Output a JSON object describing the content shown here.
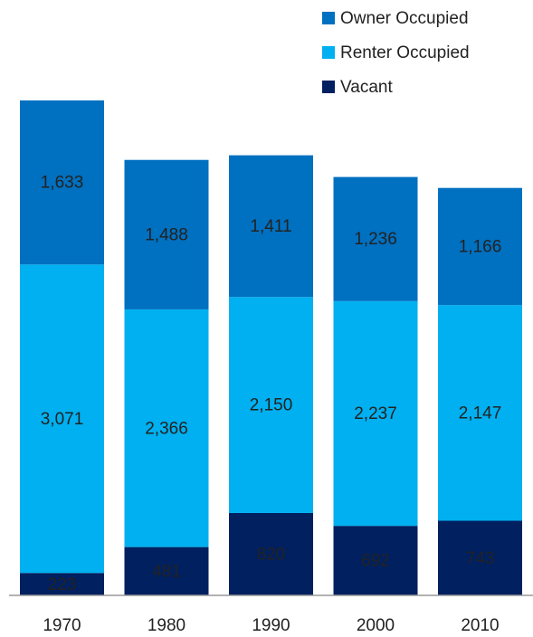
{
  "chart_data": {
    "type": "stacked_bar",
    "categories": [
      "1970",
      "1980",
      "1990",
      "2000",
      "2010"
    ],
    "series": [
      {
        "name": "Owner Occupied",
        "color": "#0070c0",
        "values": [
          1633,
          1488,
          1411,
          1236,
          1166
        ],
        "value_labels": [
          "1,633",
          "1,488",
          "1,411",
          "1,236",
          "1,166"
        ]
      },
      {
        "name": "Renter Occupied",
        "color": "#00b0f0",
        "values": [
          3071,
          2366,
          2150,
          2237,
          2147
        ],
        "value_labels": [
          "3,071",
          "2,366",
          "2,150",
          "2,237",
          "2,147"
        ]
      },
      {
        "name": "Vacant",
        "color": "#002060",
        "values": [
          223,
          481,
          820,
          692,
          743
        ]
      }
    ],
    "legend": "top-right"
  }
}
